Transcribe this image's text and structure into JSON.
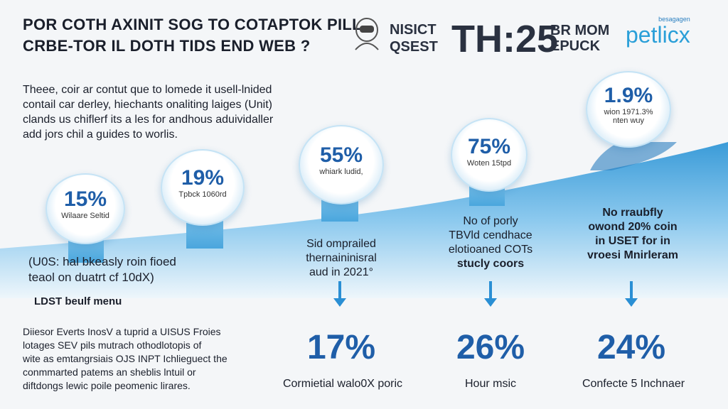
{
  "header": {
    "title_line1": "POR COTH AXINIT SOG TO COTAPTOK PILL",
    "title_line2": "CRBE-TOR IL DOTH TIDS END WEB ?",
    "brand_line1": "NISICT",
    "brand_line2": "QSEST",
    "time": "TH:25",
    "brand_sub_line1": "BR MOM",
    "brand_sub_line2": "EPUCK",
    "logo_small": "besagagen",
    "logo_main": "petlicx"
  },
  "intro": {
    "line1": "Theee, coir ar contut que to lomede it usell-lnided",
    "line2": "contail car derley, hiechants onaliting laiges (Unit)",
    "line3": "clands us chiflerf its a les for andhous aduividaller",
    "line4": "add jors chil a guides to worlis."
  },
  "bubbles": [
    {
      "pct": "15%",
      "cap": "Wilaare Seltid"
    },
    {
      "pct": "19%",
      "cap": "Tpbck 1060rd"
    },
    {
      "pct": "55%",
      "cap": "whiark ludid,"
    },
    {
      "pct": "75%",
      "cap": "Woten 15tpd"
    },
    {
      "pct": "1.9%",
      "cap": "wion 1971.3%\nnten wuy"
    }
  ],
  "wave_text": {
    "line1": "(U0S: hal bkeasly roin fioed",
    "line2": "teaol on duatrt cf 10dX)"
  },
  "mid_notes": [
    {
      "line1": "Sid omprailed",
      "line2": "thernaininisral",
      "line3": "aud in 2021°"
    },
    {
      "line1": "No of porly",
      "line2": "TBVld cendhace",
      "line3": "elotioaned COTs",
      "line4": "stucly coors"
    },
    {
      "line1": "No rraubfly",
      "line2": "owond 20% coin",
      "line3": "in USET for in",
      "line4": "vroesi Mnirleram"
    }
  ],
  "section_head": "LDST beulf menu",
  "bottom_desc": {
    "line1": "Diiesor Everts InosV a tuprid a UISUS Froies",
    "line2": "lotages SEV pils mutrach othodlotopis of",
    "line3": "wite as emtangrsiais OJS INPT Ichlieguect the",
    "line4": "conmmarted patems an sheblis lntuil or",
    "line5": "diftdongs lewic poile peomenic lirares."
  },
  "stats": [
    {
      "pct": "17%",
      "label": "Cormietial walo0X poric"
    },
    {
      "pct": "26%",
      "label": "Hour msic"
    },
    {
      "pct": "24%",
      "label": "Confecte 5 Inchnaer"
    }
  ],
  "colors": {
    "accent": "#2a8fd4",
    "wave": "#4aa6dd",
    "pct_text": "#1f5ea8"
  }
}
